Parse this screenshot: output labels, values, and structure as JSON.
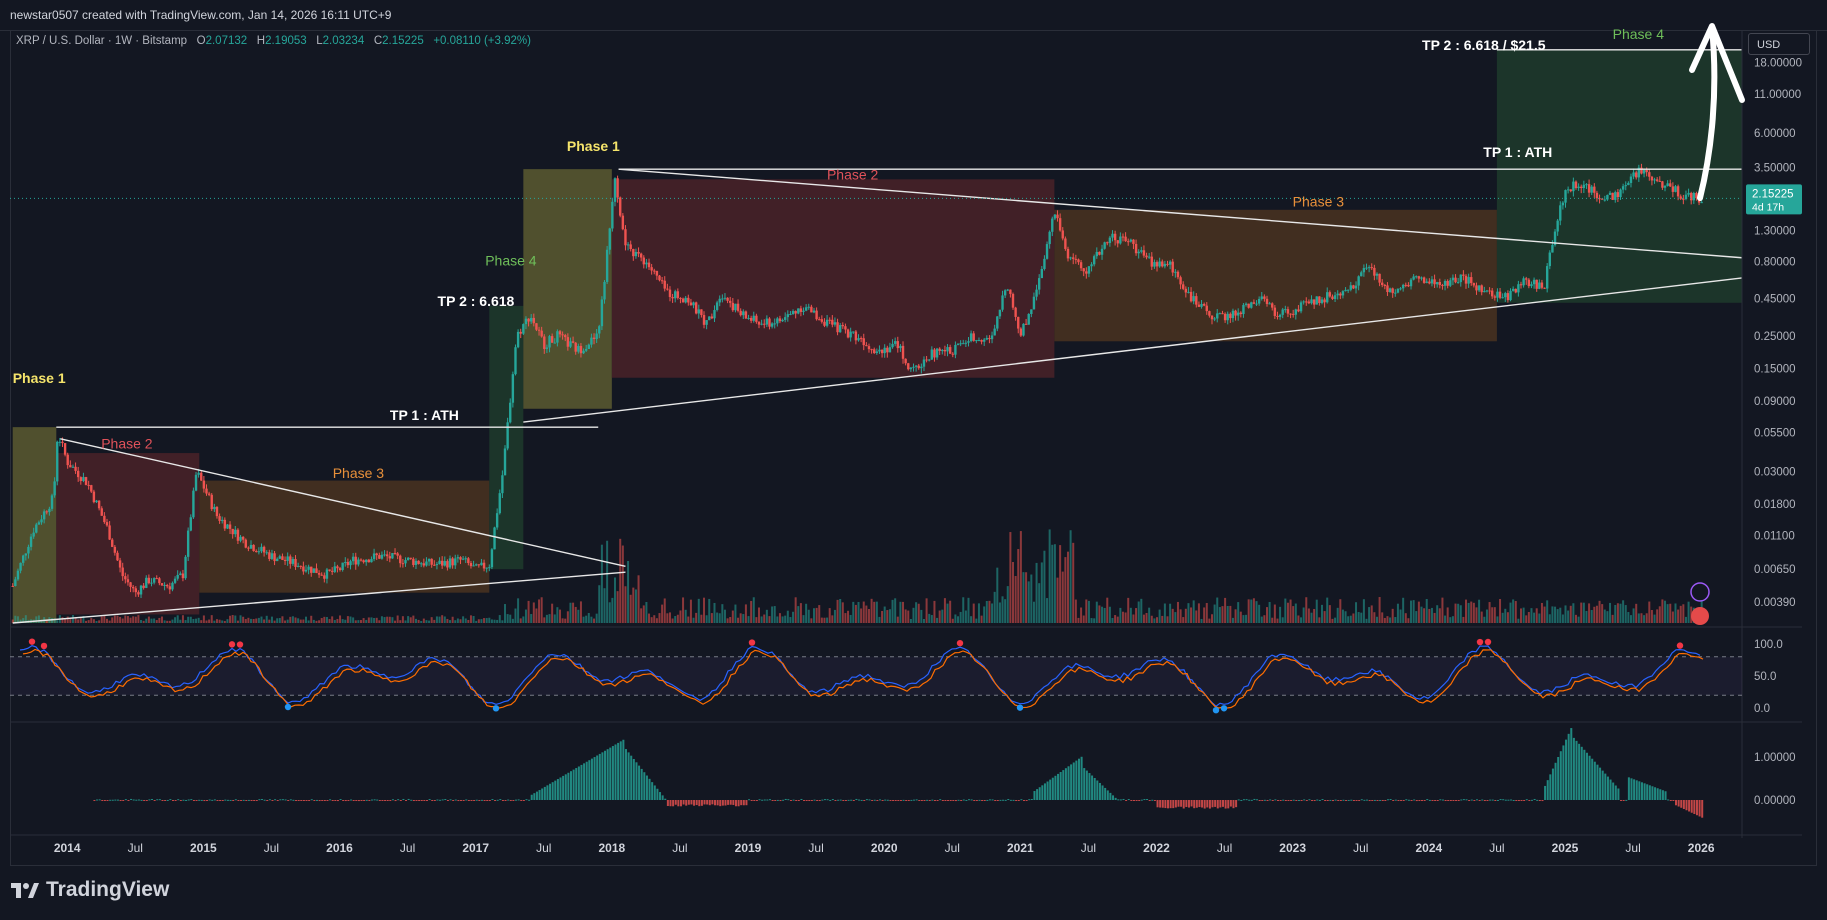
{
  "header": {
    "credit": "newstar0507 created with TradingView.com, Jan 14, 2026 16:11 UTC+9"
  },
  "symbol": {
    "name": "XRP / U.S. Dollar · 1W · Bitstamp",
    "open_label": "O",
    "open": "2.07132",
    "high_label": "H",
    "high": "2.19053",
    "low_label": "L",
    "low": "2.03234",
    "close_label": "C",
    "close": "2.15225",
    "change": "+0.08110 (+3.92%)"
  },
  "currency_button": "USD",
  "footer": {
    "brand": "TradingView"
  },
  "colors": {
    "background": "#131722",
    "up": "#26a69a",
    "down": "#ef5350",
    "phase1": "#5c5a30",
    "phase2": "#4a2228",
    "phase3": "#4a3320",
    "phase4": "#1f3b2b",
    "phase1_text": "#f5e46b",
    "phase2_text": "#e0525a",
    "phase3_text": "#e8903a",
    "phase4_text": "#6fbf5a"
  },
  "chart_data": {
    "type": "candlestick",
    "scale": "log",
    "x_ticks": [
      "2014",
      "Jul",
      "2015",
      "Jul",
      "2016",
      "Jul",
      "2017",
      "Jul",
      "2018",
      "Jul",
      "2019",
      "Jul",
      "2020",
      "Jul",
      "2021",
      "Jul",
      "2022",
      "Jul",
      "2023",
      "Jul",
      "2024",
      "Jul",
      "2025",
      "Jul",
      "2026"
    ],
    "x_tick_dates": [
      2014.0,
      2014.5,
      2015.0,
      2015.5,
      2016.0,
      2016.5,
      2017.0,
      2017.5,
      2018.0,
      2018.5,
      2019.0,
      2019.5,
      2020.0,
      2020.5,
      2021.0,
      2021.5,
      2022.0,
      2022.5,
      2023.0,
      2023.5,
      2024.0,
      2024.5,
      2025.0,
      2025.5,
      2026.0
    ],
    "price_ticks": [
      "18.00000",
      "11.00000",
      "6.00000",
      "3.50000",
      "1.30000",
      "0.80000",
      "0.45000",
      "0.25000",
      "0.15000",
      "0.09000",
      "0.05500",
      "0.03000",
      "0.01800",
      "0.01100",
      "0.00650",
      "0.00390"
    ],
    "price_tick_values": [
      18,
      11,
      6,
      3.5,
      1.3,
      0.8,
      0.45,
      0.25,
      0.15,
      0.09,
      0.055,
      0.03,
      0.018,
      0.011,
      0.0065,
      0.0039
    ],
    "x_range": [
      2013.58,
      2026.3
    ],
    "y_range": [
      0.0028,
      30
    ],
    "last_price": {
      "value": "2.15225",
      "countdown": "4d 17h"
    },
    "price_path": [
      [
        2013.6,
        0.005
      ],
      [
        2013.75,
        0.012
      ],
      [
        2013.9,
        0.02
      ],
      [
        2013.93,
        0.055
      ],
      [
        2014.0,
        0.035
      ],
      [
        2014.15,
        0.025
      ],
      [
        2014.3,
        0.012
      ],
      [
        2014.4,
        0.006
      ],
      [
        2014.5,
        0.0045
      ],
      [
        2014.6,
        0.0055
      ],
      [
        2014.75,
        0.005
      ],
      [
        2014.85,
        0.006
      ],
      [
        2014.95,
        0.03
      ],
      [
        2015.1,
        0.015
      ],
      [
        2015.3,
        0.01
      ],
      [
        2015.5,
        0.008
      ],
      [
        2015.7,
        0.007
      ],
      [
        2015.9,
        0.006
      ],
      [
        2016.0,
        0.0065
      ],
      [
        2016.1,
        0.0075
      ],
      [
        2016.3,
        0.008
      ],
      [
        2016.5,
        0.0075
      ],
      [
        2016.7,
        0.007
      ],
      [
        2016.9,
        0.0075
      ],
      [
        2017.0,
        0.0065
      ],
      [
        2017.1,
        0.007
      ],
      [
        2017.2,
        0.03
      ],
      [
        2017.3,
        0.25
      ],
      [
        2017.4,
        0.35
      ],
      [
        2017.5,
        0.22
      ],
      [
        2017.6,
        0.25
      ],
      [
        2017.75,
        0.2
      ],
      [
        2017.9,
        0.25
      ],
      [
        2017.98,
        1.2
      ],
      [
        2018.02,
        3.2
      ],
      [
        2018.1,
        1.0
      ],
      [
        2018.25,
        0.8
      ],
      [
        2018.4,
        0.5
      ],
      [
        2018.55,
        0.45
      ],
      [
        2018.7,
        0.3
      ],
      [
        2018.8,
        0.5
      ],
      [
        2018.95,
        0.35
      ],
      [
        2019.1,
        0.3
      ],
      [
        2019.25,
        0.32
      ],
      [
        2019.4,
        0.4
      ],
      [
        2019.6,
        0.3
      ],
      [
        2019.8,
        0.25
      ],
      [
        2019.95,
        0.2
      ],
      [
        2020.1,
        0.22
      ],
      [
        2020.2,
        0.14
      ],
      [
        2020.35,
        0.19
      ],
      [
        2020.5,
        0.2
      ],
      [
        2020.65,
        0.25
      ],
      [
        2020.8,
        0.24
      ],
      [
        2020.9,
        0.6
      ],
      [
        2021.0,
        0.25
      ],
      [
        2021.1,
        0.45
      ],
      [
        2021.25,
        1.7
      ],
      [
        2021.35,
        0.9
      ],
      [
        2021.5,
        0.7
      ],
      [
        2021.65,
        1.2
      ],
      [
        2021.8,
        1.1
      ],
      [
        2021.95,
        0.8
      ],
      [
        2022.1,
        0.75
      ],
      [
        2022.3,
        0.4
      ],
      [
        2022.45,
        0.33
      ],
      [
        2022.6,
        0.36
      ],
      [
        2022.75,
        0.45
      ],
      [
        2022.9,
        0.35
      ],
      [
        2023.0,
        0.37
      ],
      [
        2023.2,
        0.45
      ],
      [
        2023.4,
        0.5
      ],
      [
        2023.55,
        0.75
      ],
      [
        2023.7,
        0.5
      ],
      [
        2023.9,
        0.62
      ],
      [
        2024.1,
        0.55
      ],
      [
        2024.25,
        0.62
      ],
      [
        2024.4,
        0.5
      ],
      [
        2024.55,
        0.45
      ],
      [
        2024.7,
        0.58
      ],
      [
        2024.85,
        0.55
      ],
      [
        2024.92,
        1.3
      ],
      [
        2025.0,
        2.4
      ],
      [
        2025.1,
        2.8
      ],
      [
        2025.25,
        2.2
      ],
      [
        2025.4,
        2.3
      ],
      [
        2025.55,
        3.4
      ],
      [
        2025.7,
        2.8
      ],
      [
        2025.85,
        2.3
      ],
      [
        2026.0,
        2.15
      ]
    ],
    "annotations": [
      {
        "text": "Phase 1",
        "kind": "phase1",
        "date": 2013.6,
        "price": 0.12
      },
      {
        "text": "Phase 2",
        "kind": "phase2",
        "date": 2014.25,
        "price": 0.043
      },
      {
        "text": "Phase 3",
        "kind": "phase3",
        "date": 2015.95,
        "price": 0.027
      },
      {
        "text": "Phase 4",
        "kind": "phase4",
        "date": 2017.07,
        "price": 0.75
      },
      {
        "text": "Phase 1",
        "kind": "phase1",
        "date": 2017.67,
        "price": 4.5
      },
      {
        "text": "Phase 2",
        "kind": "phase2",
        "date": 2019.58,
        "price": 2.9
      },
      {
        "text": "Phase 3",
        "kind": "phase3",
        "date": 2023.0,
        "price": 1.9
      },
      {
        "text": "Phase 4",
        "kind": "phase4",
        "date": 2025.35,
        "price": 26
      },
      {
        "text": "TP 1 : ATH",
        "kind": "tp",
        "date": 2016.37,
        "price": 0.067
      },
      {
        "text": "TP 2 : 6.618",
        "kind": "tp",
        "date": 2016.72,
        "price": 0.4
      },
      {
        "text": "TP 1 : ATH",
        "kind": "tp",
        "date": 2024.4,
        "price": 4.1
      },
      {
        "text": "TP 2 : 6.618 / $21.5",
        "kind": "tp",
        "date": 2023.95,
        "price": 22
      }
    ],
    "phase_zones": [
      {
        "kind": "phase1",
        "x": [
          2013.6,
          2013.92
        ],
        "y": [
          0.0028,
          0.06
        ]
      },
      {
        "kind": "phase2",
        "x": [
          2013.92,
          2014.97
        ],
        "y": [
          0.0032,
          0.04
        ]
      },
      {
        "kind": "phase3",
        "x": [
          2014.97,
          2017.1
        ],
        "y": [
          0.0045,
          0.026
        ]
      },
      {
        "kind": "phase4",
        "x": [
          2017.1,
          2017.35
        ],
        "y": [
          0.0065,
          0.4
        ]
      },
      {
        "kind": "phase1",
        "x": [
          2017.35,
          2018.0
        ],
        "y": [
          0.08,
          3.4
        ]
      },
      {
        "kind": "phase2",
        "x": [
          2018.0,
          2021.25
        ],
        "y": [
          0.13,
          2.9
        ]
      },
      {
        "kind": "phase3",
        "x": [
          2021.25,
          2024.5
        ],
        "y": [
          0.23,
          1.8
        ]
      },
      {
        "kind": "phase4",
        "x": [
          2024.5,
          2026.3
        ],
        "y": [
          0.42,
          22
        ]
      }
    ],
    "lines": [
      {
        "from": [
          2013.92,
          0.06
        ],
        "to": [
          2017.9,
          0.06
        ]
      },
      {
        "from": [
          2013.6,
          0.0028
        ],
        "to": [
          2018.1,
          0.0062
        ]
      },
      {
        "from": [
          2013.95,
          0.05
        ],
        "to": [
          2018.1,
          0.0068
        ]
      },
      {
        "from": [
          2017.35,
          0.065
        ],
        "to": [
          2026.3,
          0.62
        ]
      },
      {
        "from": [
          2018.05,
          3.4
        ],
        "to": [
          2026.3,
          0.85
        ]
      },
      {
        "from": [
          2018.05,
          3.4
        ],
        "to": [
          2026.3,
          3.4
        ]
      },
      {
        "from": [
          2024.5,
          22
        ],
        "to": [
          2026.3,
          22
        ]
      }
    ],
    "stoch_axis": [
      "100.0",
      "50.0",
      "0.0"
    ],
    "stoch_axis_values": [
      100,
      50,
      0
    ],
    "macd_axis": [
      "1.00000",
      "0.00000"
    ],
    "macd_axis_values": [
      1,
      0
    ]
  }
}
